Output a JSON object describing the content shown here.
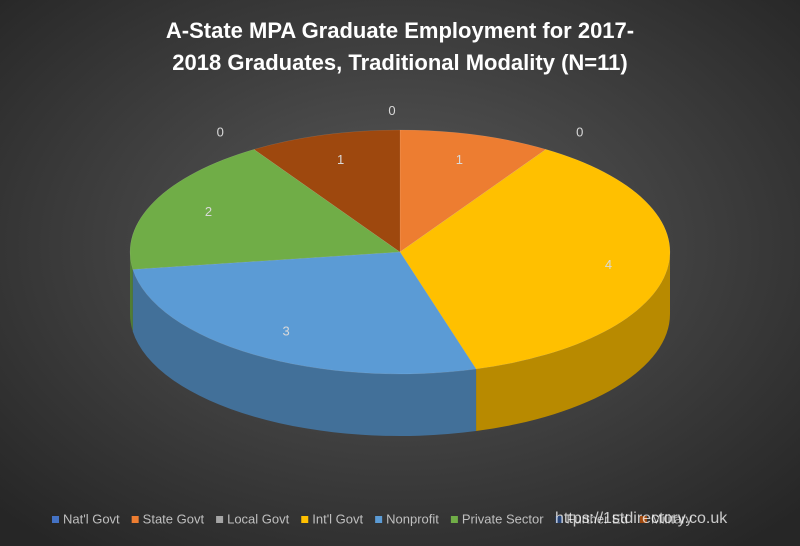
{
  "chart_data": {
    "type": "pie3d",
    "title": [
      "A-State MPA Graduate Employment for 2017-",
      "2018 Graduates, Traditional Modality (N=11)"
    ],
    "categories": [
      "Nat'l Govt",
      "State Govt",
      "Local Govt",
      "Int'l Govt",
      "Nonprofit",
      "Private Sector",
      "Further Ed",
      "Military"
    ],
    "values": [
      0,
      1,
      0,
      4,
      3,
      2,
      0,
      1
    ],
    "colors": [
      "#4472c4",
      "#ed7d31",
      "#a5a5a5",
      "#ffc000",
      "#5b9bd5",
      "#70ad47",
      "#264478",
      "#9e480e"
    ],
    "legend": "bottom"
  },
  "watermark": "https://1stdirectory.co.uk"
}
